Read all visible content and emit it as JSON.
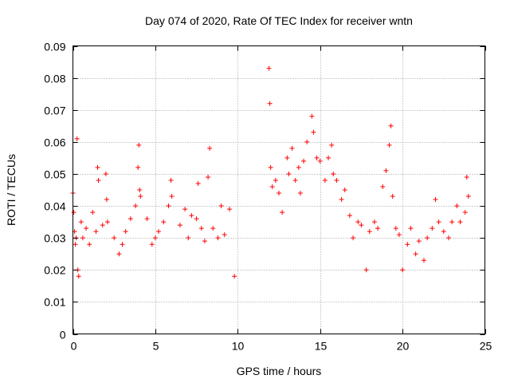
{
  "chart_data": {
    "type": "scatter",
    "title": "Day 074 of 2020, Rate Of TEC Index for receiver wntn",
    "xlabel": "GPS time / hours",
    "ylabel": "ROTI / TECUs",
    "xlim": [
      0,
      25
    ],
    "ylim": [
      0,
      0.09
    ],
    "xticks": [
      0,
      5,
      10,
      15,
      20,
      25
    ],
    "yticks": [
      0,
      0.01,
      0.02,
      0.03,
      0.04,
      0.05,
      0.06,
      0.07,
      0.08,
      0.09
    ],
    "grid": true,
    "marker": "plus",
    "color": "#ff0000",
    "data_gap_hours": [
      9.9,
      11.85
    ],
    "series": [
      {
        "x": [
          0.0,
          0.05,
          0.1,
          0.15,
          0.2,
          0.25,
          0.3,
          0.35,
          0.5,
          0.6,
          0.8,
          1.0,
          1.2,
          1.4,
          1.5,
          1.55,
          1.8,
          2.0,
          2.05,
          2.1,
          2.5,
          2.8,
          3.0,
          3.2,
          3.5,
          3.8,
          3.95,
          4.0,
          4.05,
          4.1,
          4.5,
          4.8,
          5.0,
          5.2,
          5.5,
          5.8,
          5.95,
          6.0,
          6.5,
          6.8,
          7.0,
          7.2,
          7.5,
          7.6,
          7.8,
          8.0,
          8.2,
          8.3,
          8.5,
          8.8,
          9.0,
          9.2,
          9.5,
          9.8,
          11.9,
          11.95,
          12.0,
          12.1,
          12.3,
          12.5,
          12.7,
          13.0,
          13.1,
          13.3,
          13.5,
          13.7,
          13.8,
          14.0,
          14.2,
          14.5,
          14.6,
          14.8,
          15.0,
          15.3,
          15.5,
          15.7,
          15.8,
          16.0,
          16.3,
          16.5,
          16.8,
          17.0,
          17.3,
          17.5,
          17.8,
          18.0,
          18.3,
          18.5,
          18.8,
          19.0,
          19.2,
          19.3,
          19.4,
          19.6,
          19.8,
          20.0,
          20.3,
          20.5,
          20.8,
          21.0,
          21.3,
          21.5,
          21.8,
          22.0,
          22.2,
          22.5,
          22.8,
          23.0,
          23.3,
          23.5,
          23.8,
          23.9,
          24.0
        ],
        "y": [
          0.044,
          0.038,
          0.032,
          0.028,
          0.03,
          0.061,
          0.02,
          0.018,
          0.035,
          0.03,
          0.033,
          0.028,
          0.038,
          0.032,
          0.052,
          0.048,
          0.034,
          0.05,
          0.042,
          0.035,
          0.03,
          0.025,
          0.028,
          0.032,
          0.036,
          0.04,
          0.052,
          0.059,
          0.045,
          0.043,
          0.036,
          0.028,
          0.03,
          0.032,
          0.035,
          0.04,
          0.048,
          0.043,
          0.034,
          0.039,
          0.03,
          0.037,
          0.036,
          0.047,
          0.033,
          0.029,
          0.049,
          0.058,
          0.033,
          0.03,
          0.04,
          0.031,
          0.039,
          0.018,
          0.083,
          0.072,
          0.052,
          0.046,
          0.048,
          0.044,
          0.038,
          0.055,
          0.05,
          0.058,
          0.048,
          0.052,
          0.044,
          0.054,
          0.06,
          0.068,
          0.063,
          0.055,
          0.054,
          0.048,
          0.055,
          0.059,
          0.05,
          0.048,
          0.042,
          0.045,
          0.037,
          0.03,
          0.035,
          0.034,
          0.02,
          0.032,
          0.035,
          0.033,
          0.046,
          0.051,
          0.059,
          0.065,
          0.043,
          0.033,
          0.031,
          0.02,
          0.028,
          0.033,
          0.025,
          0.029,
          0.023,
          0.03,
          0.033,
          0.042,
          0.035,
          0.032,
          0.03,
          0.035,
          0.04,
          0.035,
          0.038,
          0.049,
          0.043
        ]
      }
    ]
  }
}
